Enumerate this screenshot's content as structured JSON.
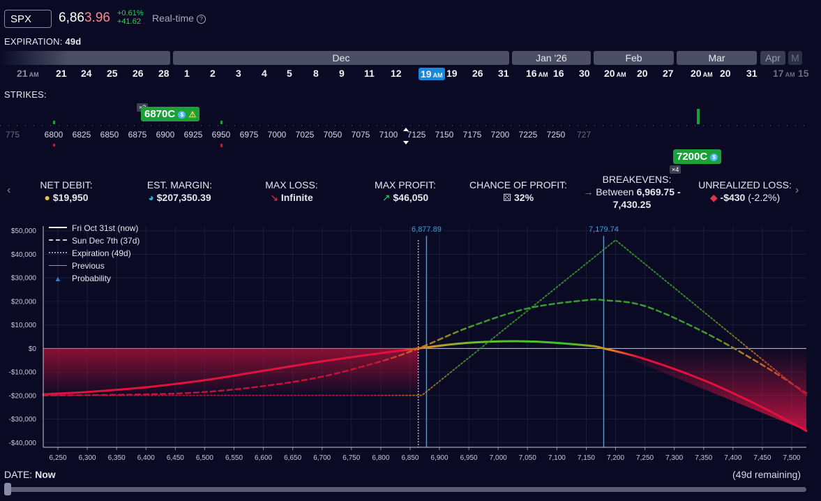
{
  "ticker": {
    "symbol": "SPX",
    "price_main": "6,86",
    "price_tail": "3.96",
    "change_pct": "+0.61%",
    "change_abs": "+41.62",
    "realtime": "Real-time",
    "help_icon": "?"
  },
  "expiration": {
    "label": "EXPIRATION:",
    "value": "49d"
  },
  "months": [
    "Dec",
    "Jan '26",
    "Feb",
    "Mar",
    "Apr",
    "M"
  ],
  "days": [
    {
      "d": "21",
      "am": "AM"
    },
    {
      "d": "21"
    },
    {
      "d": "24"
    },
    {
      "d": "25"
    },
    {
      "d": "26"
    },
    {
      "d": "28"
    },
    {
      "d": "1"
    },
    {
      "d": "2"
    },
    {
      "d": "3"
    },
    {
      "d": "4"
    },
    {
      "d": "5"
    },
    {
      "d": "8"
    },
    {
      "d": "9"
    },
    {
      "d": "11"
    },
    {
      "d": "12"
    },
    {
      "d": "19",
      "am": "AM"
    },
    {
      "d": "19"
    },
    {
      "d": "26"
    },
    {
      "d": "31"
    },
    {
      "d": "16",
      "am": "AM"
    },
    {
      "d": "16"
    },
    {
      "d": "30"
    },
    {
      "d": "20",
      "am": "AM"
    },
    {
      "d": "20"
    },
    {
      "d": "27"
    },
    {
      "d": "20",
      "am": "AM"
    },
    {
      "d": "20"
    },
    {
      "d": "31"
    },
    {
      "d": "17",
      "am": "AM"
    },
    {
      "d": "15"
    }
  ],
  "strikes": {
    "label": "STRIKES:",
    "ticks": [
      "775",
      "6800",
      "6825",
      "6850",
      "6875",
      "6900",
      "6925",
      "6950",
      "6975",
      "7000",
      "7025",
      "7050",
      "7075",
      "7100",
      "7125",
      "7150",
      "7175",
      "7200",
      "7225",
      "7250",
      "727"
    ],
    "leg1": {
      "label": "6870C",
      "mult": "×2"
    },
    "leg2": {
      "label": "7200C",
      "mult": "×4"
    }
  },
  "metrics": [
    {
      "label": "NET DEBIT:",
      "value": "$19,950",
      "icon": "coins-icon"
    },
    {
      "label": "EST. MARGIN:",
      "value": "$207,350.39",
      "icon": "pie-icon"
    },
    {
      "label": "MAX LOSS:",
      "value": "Infinite",
      "icon": "arrow-down-icon"
    },
    {
      "label": "MAX PROFIT:",
      "value": "$46,050",
      "icon": "arrow-up-icon"
    },
    {
      "label": "CHANCE OF PROFIT:",
      "value": "32%",
      "icon": "dice-icon"
    },
    {
      "label": "BREAKEVENS:",
      "value_a": "Between",
      "value_b": "6,969.75",
      "value_c": "-",
      "value_d": "7,430.25",
      "icon": "arrow-right-icon"
    },
    {
      "label": "UNREALIZED LOSS:",
      "value": "-$430",
      "value_pct": "(-2.2%)",
      "icon": "bag-icon"
    }
  ],
  "legend": [
    {
      "label": "Fri Oct 31st (now)"
    },
    {
      "label": "Sun Dec 7th (37d)"
    },
    {
      "label": "Expiration (49d)"
    },
    {
      "label": "Previous"
    },
    {
      "label": "Probability"
    }
  ],
  "chart_data": {
    "type": "line",
    "xlabel": "",
    "ylabel": "",
    "xlim": [
      6225,
      7525
    ],
    "ylim": [
      -42000,
      52000
    ],
    "x_ticks": [
      6250,
      6300,
      6350,
      6400,
      6450,
      6500,
      6550,
      6600,
      6650,
      6700,
      6750,
      6800,
      6850,
      6900,
      6950,
      7000,
      7050,
      7100,
      7150,
      7200,
      7250,
      7300,
      7350,
      7400,
      7450,
      7500
    ],
    "x_tick_labels": [
      "6,250",
      "6,300",
      "6,350",
      "6,400",
      "6,450",
      "6,500",
      "6,550",
      "6,600",
      "6,650",
      "6,700",
      "6,750",
      "6,800",
      "6,850",
      "6,900",
      "6,950",
      "7,000",
      "7,050",
      "7,100",
      "7,150",
      "7,200",
      "7,250",
      "7,300",
      "7,350",
      "7,400",
      "7,450",
      "7,500"
    ],
    "y_ticks": [
      50000,
      40000,
      30000,
      20000,
      10000,
      0,
      -10000,
      -20000,
      -30000,
      -40000
    ],
    "y_tick_labels": [
      "$50,000",
      "$40,000",
      "$30,000",
      "$20,000",
      "$10,000",
      "$0",
      "-$10,000",
      "-$20,000",
      "-$30,000",
      "-$40,000"
    ],
    "markers": [
      {
        "x": 6877.89,
        "label": "6,877.89"
      },
      {
        "x": 7179.74,
        "label": "7,179.74"
      }
    ],
    "current_price": 6863.96,
    "series": [
      {
        "name": "Fri Oct 31st (now)",
        "x": [
          6225,
          6300,
          6400,
          6500,
          6600,
          6700,
          6800,
          6864,
          6950,
          7050,
          7150,
          7180,
          7250,
          7350,
          7450,
          7525
        ],
        "values": [
          -19500,
          -18500,
          -16500,
          -13500,
          -9500,
          -5500,
          -2000,
          0,
          2400,
          3000,
          1300,
          0,
          -4500,
          -13500,
          -25000,
          -35000
        ]
      },
      {
        "name": "Sun Dec 7th (37d)",
        "x": [
          6225,
          6400,
          6500,
          6600,
          6700,
          6800,
          6864,
          6950,
          7050,
          7150,
          7180,
          7250,
          7350,
          7450,
          7525
        ],
        "values": [
          -20000,
          -19500,
          -18500,
          -16000,
          -12000,
          -5500,
          0,
          9000,
          17000,
          20500,
          20500,
          18000,
          7000,
          -7000,
          -19000
        ]
      },
      {
        "name": "Expiration (49d)",
        "x": [
          6225,
          6870,
          7200,
          7525
        ],
        "values": [
          -19950,
          -19950,
          46050,
          -19950
        ]
      }
    ]
  },
  "bottom": {
    "date_label": "DATE:",
    "date_value": "Now",
    "remaining": "(49d remaining)"
  }
}
